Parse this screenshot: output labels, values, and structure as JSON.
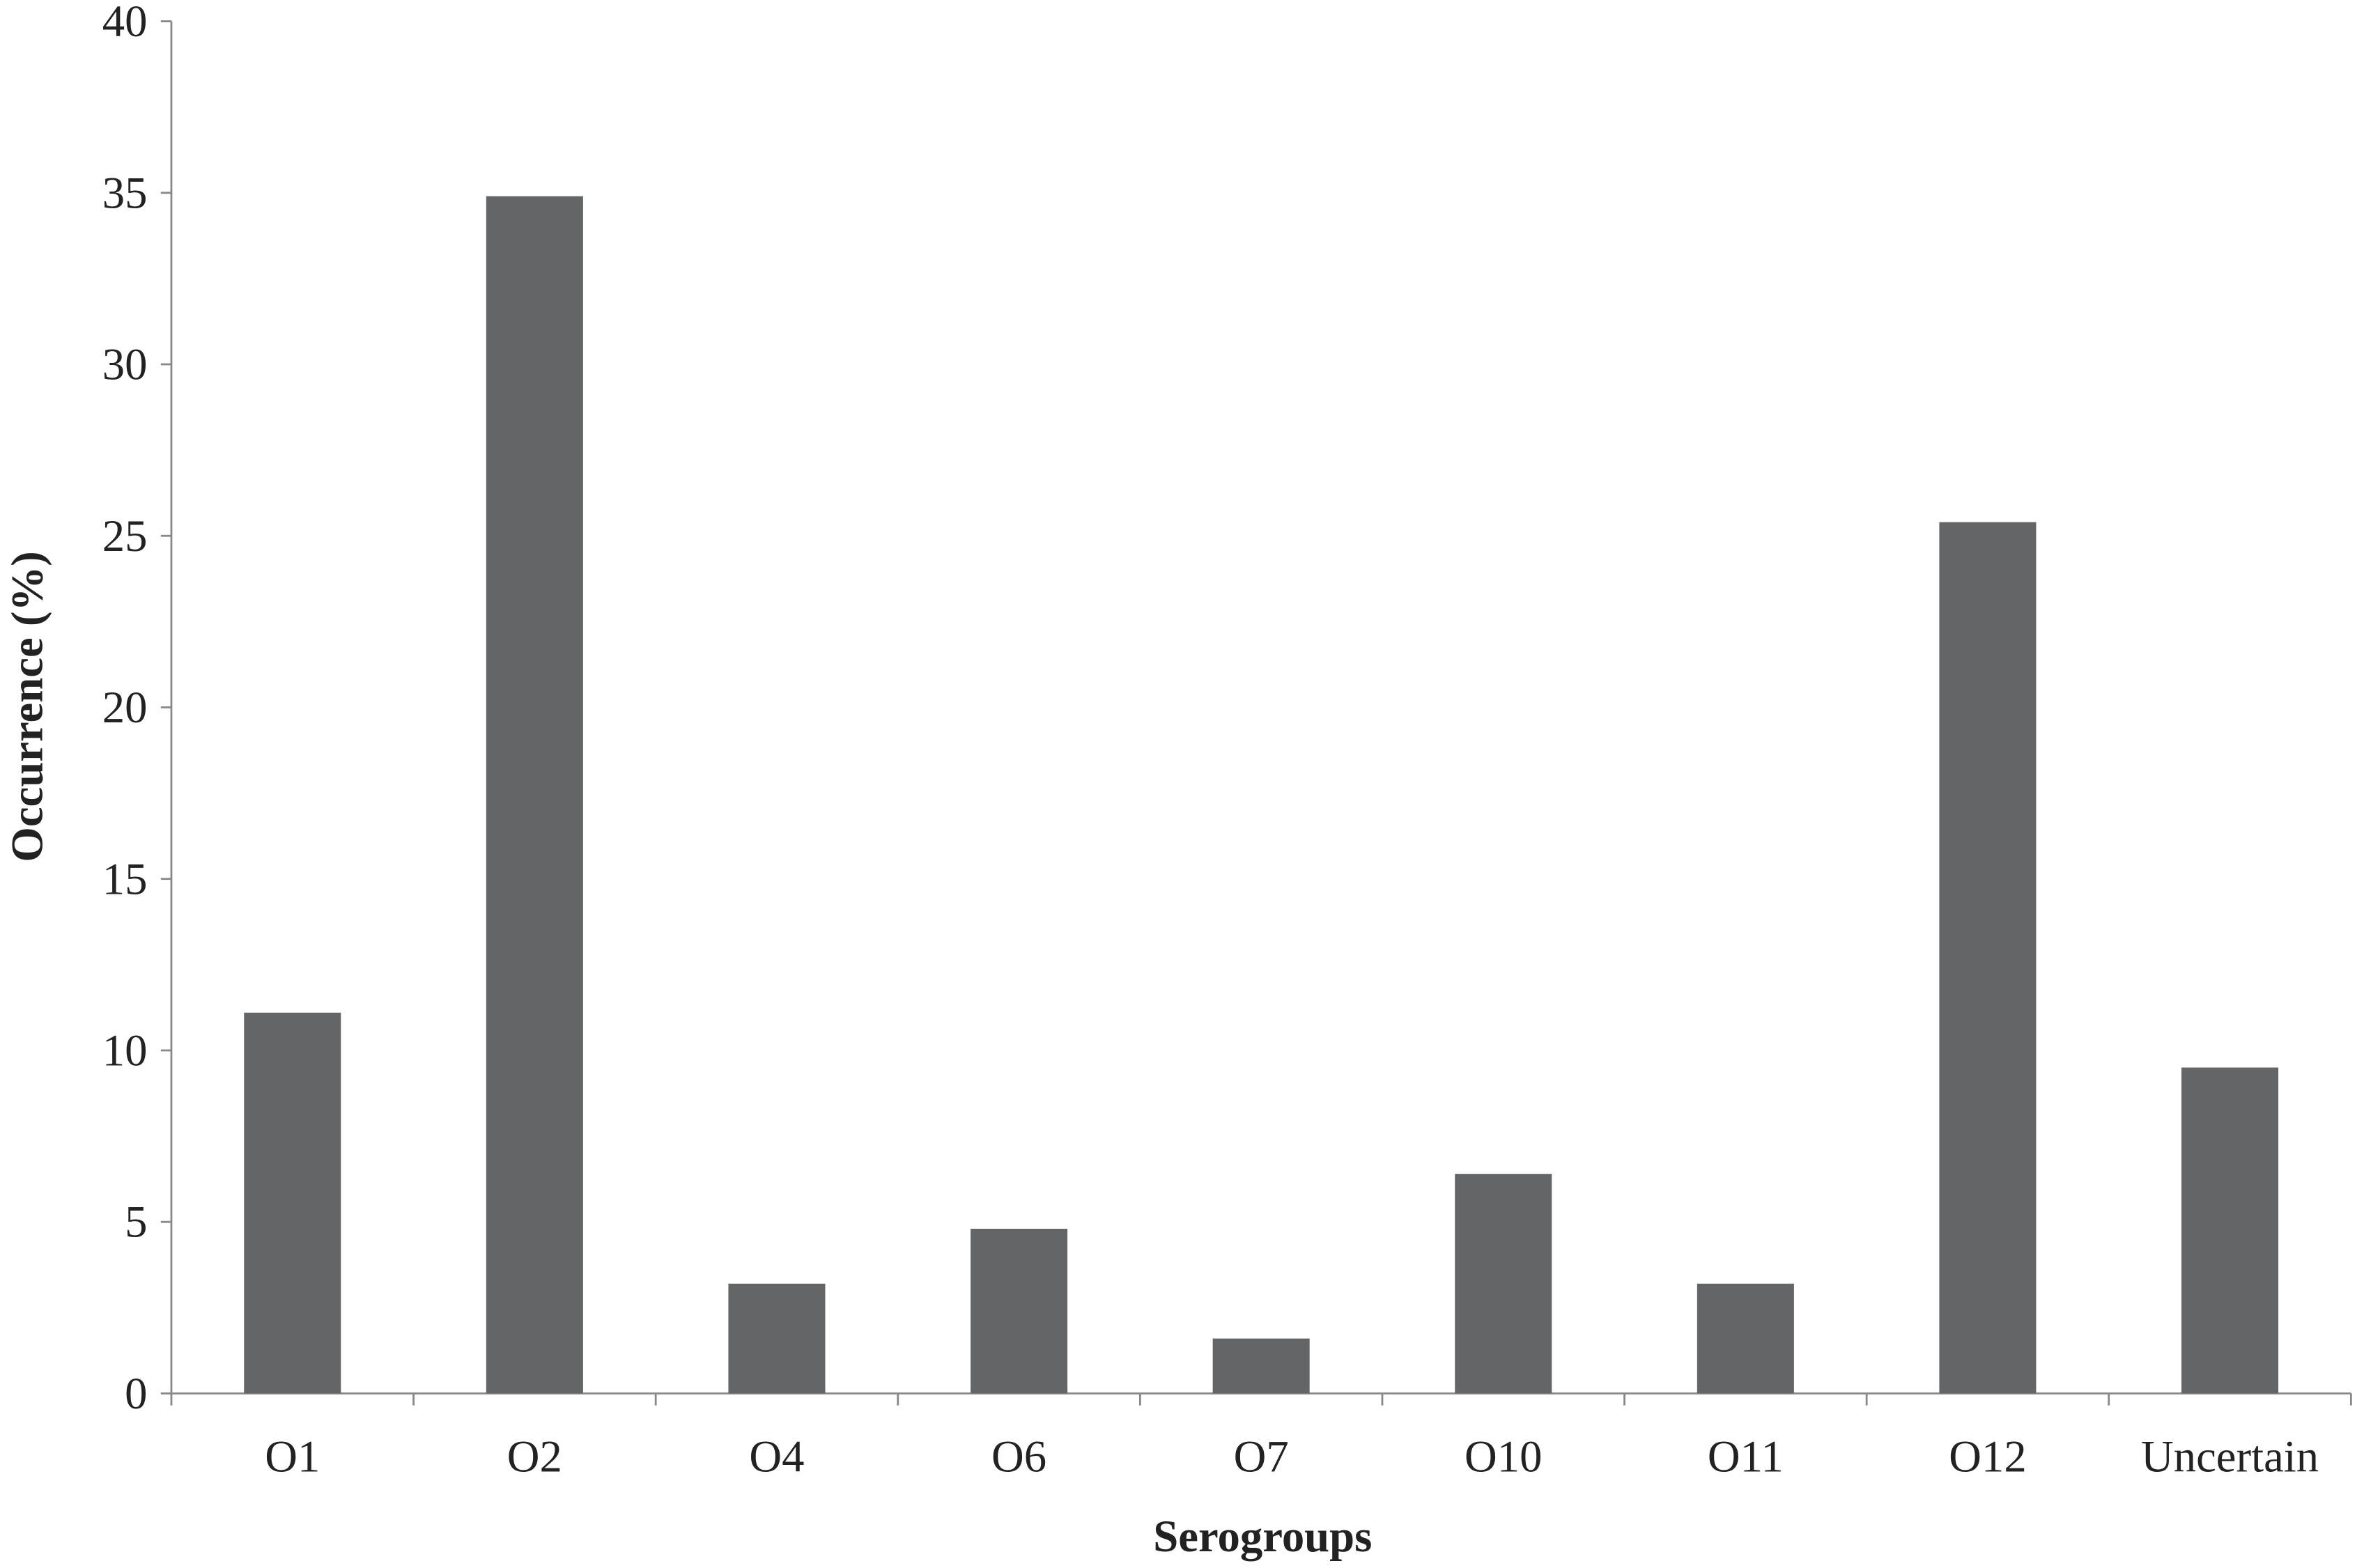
{
  "chart_data": {
    "type": "bar",
    "x_label": "Serogroups",
    "y_label": "Occurrence (%)",
    "categories": [
      "O1",
      "O2",
      "O4",
      "O6",
      "O7",
      "O10",
      "O11",
      "O12",
      "Uncertain"
    ],
    "values": [
      11.1,
      34.9,
      3.2,
      4.8,
      1.6,
      6.4,
      3.2,
      25.4,
      9.5
    ],
    "color": "#636567",
    "ylim": [
      0,
      40
    ],
    "yticks": [
      0,
      5,
      10,
      15,
      20,
      25,
      30,
      35,
      40
    ],
    "grid": false
  }
}
